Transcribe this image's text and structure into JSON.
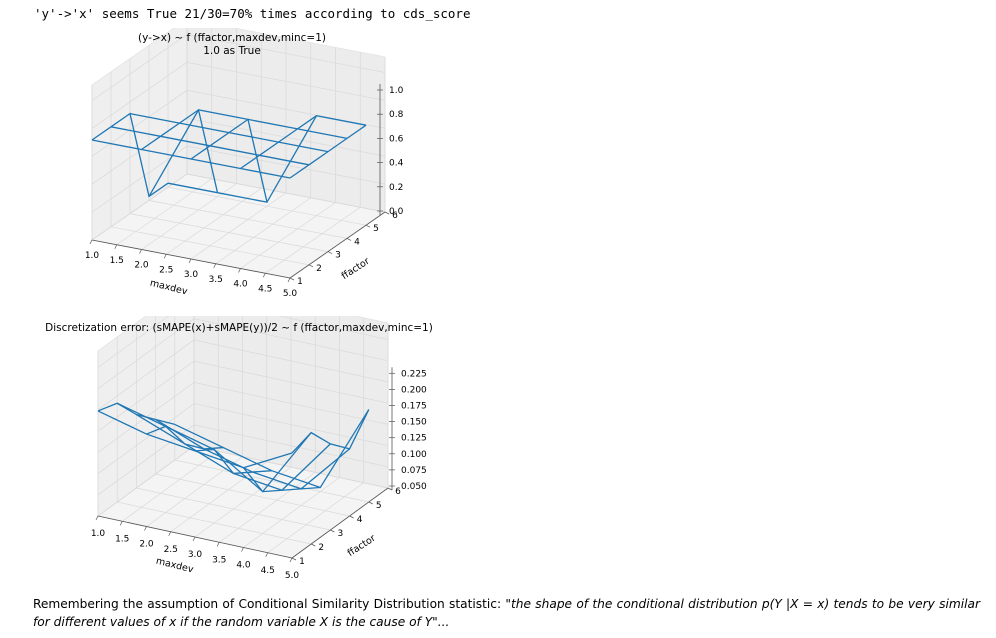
{
  "header": {
    "text": "'y'->'x' seems True 21/30=70% times according to cds_score"
  },
  "chart_data": [
    {
      "type": "surface-wireframe-3d",
      "title": "(y->x) ~ f (ffactor,maxdev,minc=1)",
      "subtitle": "1.0 as True",
      "xlabel": "maxdev",
      "ylabel": "ffactor",
      "x_ticks": [
        "1.0",
        "1.5",
        "2.0",
        "2.5",
        "3.0",
        "3.5",
        "4.0",
        "4.5",
        "5.0"
      ],
      "y_ticks": [
        "1",
        "2",
        "3",
        "4",
        "5",
        "6"
      ],
      "z_ticks": [
        "0.0",
        "0.2",
        "0.4",
        "0.6",
        "0.8",
        "1.0"
      ],
      "zlim": [
        0,
        1
      ],
      "x": [
        1,
        2,
        3,
        4,
        5
      ],
      "y": [
        1,
        2,
        3,
        4,
        5
      ],
      "z": [
        [
          1.0,
          1.0,
          1.0,
          1.0,
          1.0
        ],
        [
          1.0,
          1.0,
          1.0,
          1.0,
          1.0
        ],
        [
          1.0,
          1.0,
          1.0,
          1.0,
          1.0
        ],
        [
          0.0,
          1.0,
          1.0,
          1.0,
          1.0
        ],
        [
          0.0,
          0.0,
          0.0,
          1.0,
          1.0
        ]
      ],
      "color": "#1f77b4"
    },
    {
      "type": "surface-wireframe-3d",
      "title": "Discretization error: (sMAPE(x)+sMAPE(y))/2 ~ f (ffactor,maxdev,minc=1)",
      "xlabel": "maxdev",
      "ylabel": "ffactor",
      "x_ticks": [
        "1.0",
        "1.5",
        "2.0",
        "2.5",
        "3.0",
        "3.5",
        "4.0",
        "4.5",
        "5.0"
      ],
      "y_ticks": [
        "1",
        "2",
        "3",
        "4",
        "5",
        "6"
      ],
      "z_ticks": [
        "0.050",
        "0.075",
        "0.100",
        "0.125",
        "0.150",
        "0.175",
        "0.200",
        "0.225"
      ],
      "zlim": [
        0.04,
        0.23
      ],
      "x": [
        1,
        2,
        3,
        4,
        5
      ],
      "y": [
        1,
        2,
        3,
        4,
        5
      ],
      "z": [
        [
          0.2,
          0.18,
          0.17,
          0.16,
          0.2
        ],
        [
          0.19,
          0.17,
          0.15,
          0.1,
          0.21
        ],
        [
          0.15,
          0.12,
          0.09,
          0.08,
          0.17
        ],
        [
          0.12,
          0.09,
          0.07,
          0.06,
          0.14
        ],
        [
          0.09,
          0.07,
          0.05,
          0.04,
          0.18
        ]
      ],
      "color": "#1f77b4"
    }
  ],
  "footer": {
    "lead": "Remembering the assumption of Conditional Similarity Distribution statistic: ",
    "quote": "\"the shape of the conditional distribution p(Y |X = x) tends to be very similar for different values of x if the random variable X is the cause of Y\"..."
  }
}
